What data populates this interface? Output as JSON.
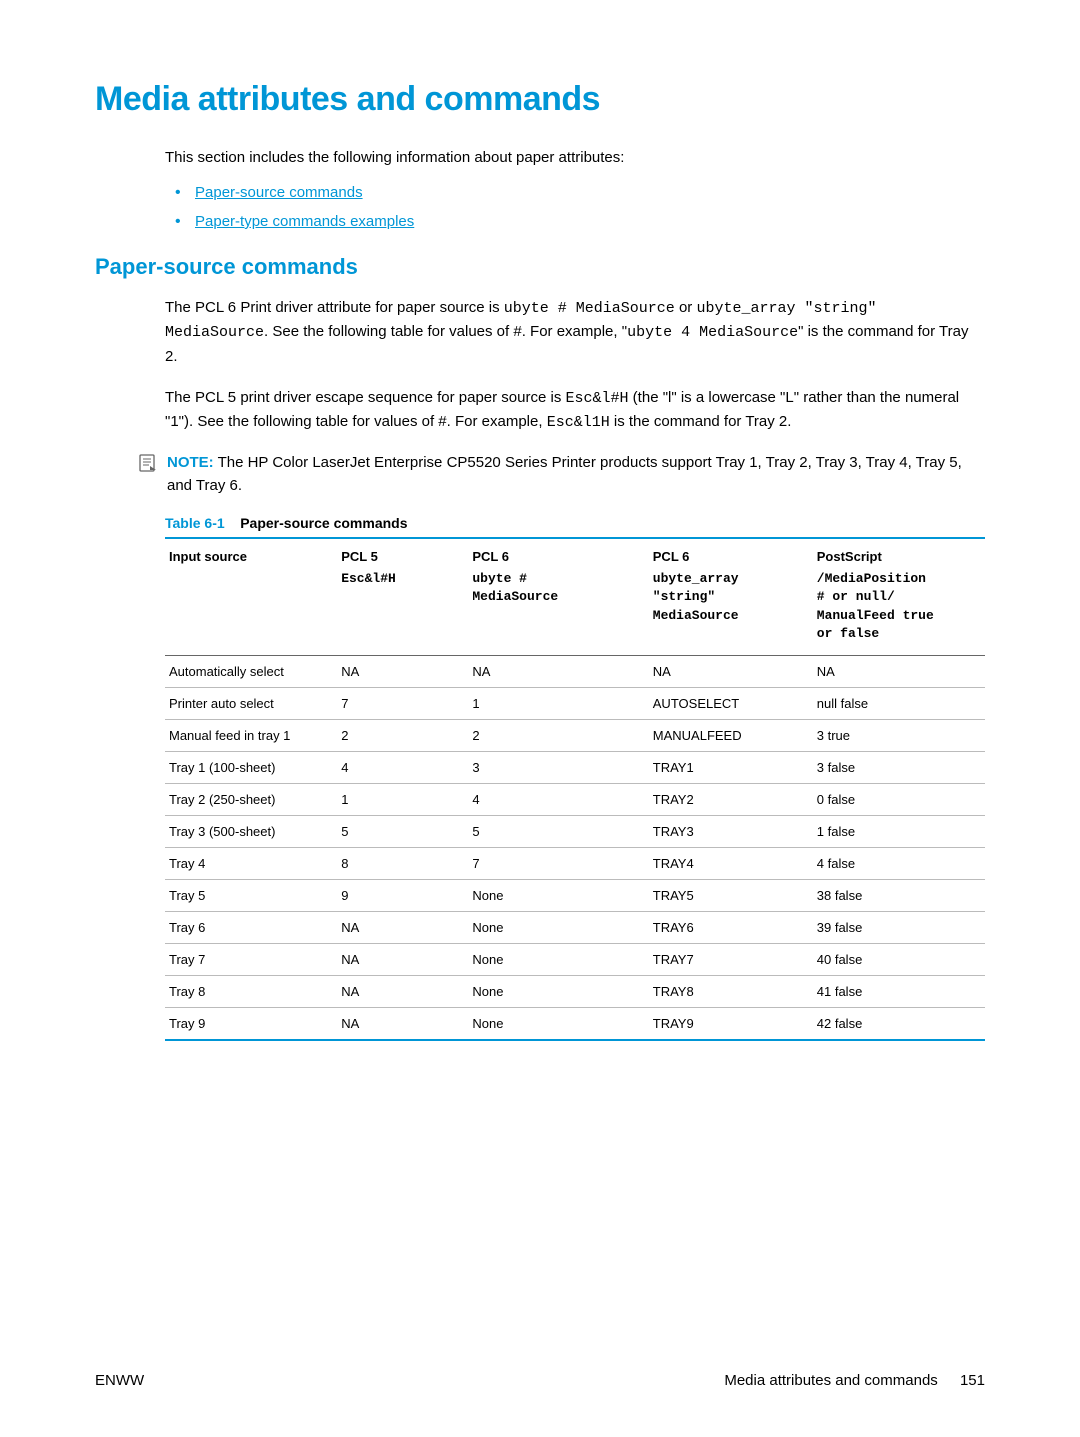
{
  "heading": "Media attributes and commands",
  "intro": "This section includes the following information about paper attributes:",
  "links": [
    "Paper-source commands",
    "Paper-type commands examples"
  ],
  "subheading": "Paper-source commands",
  "para1_a": "The PCL 6 Print driver attribute for paper source is ",
  "para1_code1": "ubyte # MediaSource",
  "para1_b": " or ",
  "para1_code2": "ubyte_array \"string\" MediaSource",
  "para1_c": ". See the following table for values of #. For example, \"",
  "para1_code3": "ubyte 4 MediaSource",
  "para1_d": "\" is the command for Tray 2.",
  "para2_a": "The PCL 5 print driver escape sequence for paper source is ",
  "para2_code1": "Esc&l#H",
  "para2_b": " (the \"l\" is a lowercase \"L\" rather than the numeral \"1\"). See the following table for values of #. For example, ",
  "para2_code2": "Esc&l1H",
  "para2_c": " is the command for Tray 2.",
  "note_label": "NOTE:",
  "note_text": "The HP Color LaserJet Enterprise CP5520 Series Printer products support Tray 1, Tray 2, Tray 3, Tray 4, Tray 5, and Tray 6.",
  "table_caption_num": "Table 6-1",
  "table_caption_title": "Paper-source commands",
  "columns": {
    "c1": "Input source",
    "c2": "PCL 5",
    "c3": "PCL 6",
    "c4": "PCL 6",
    "c5": "PostScript",
    "s1": "",
    "s2": "Esc&l#H",
    "s3": "ubyte #\nMediaSource",
    "s4": "ubyte_array\n\"string\"\nMediaSource",
    "s5": "/MediaPosition\n# or null/\nManualFeed true\nor false"
  },
  "rows": [
    [
      "Automatically select",
      "NA",
      "NA",
      "NA",
      "NA"
    ],
    [
      "Printer auto select",
      "7",
      "1",
      "AUTOSELECT",
      "null false"
    ],
    [
      "Manual feed in tray 1",
      "2",
      "2",
      "MANUALFEED",
      "3 true"
    ],
    [
      "Tray 1 (100-sheet)",
      "4",
      "3",
      "TRAY1",
      "3 false"
    ],
    [
      "Tray 2 (250-sheet)",
      "1",
      "4",
      "TRAY2",
      "0 false"
    ],
    [
      "Tray 3 (500-sheet)",
      "5",
      "5",
      "TRAY3",
      "1 false"
    ],
    [
      "Tray 4",
      "8",
      "7",
      "TRAY4",
      "4 false"
    ],
    [
      "Tray 5",
      "9",
      "None",
      "TRAY5",
      "38 false"
    ],
    [
      "Tray 6",
      "NA",
      "None",
      "TRAY6",
      "39 false"
    ],
    [
      "Tray 7",
      "NA",
      "None",
      "TRAY7",
      "40 false"
    ],
    [
      "Tray 8",
      "NA",
      "None",
      "TRAY8",
      "41 false"
    ],
    [
      "Tray 9",
      "NA",
      "None",
      "TRAY9",
      "42 false"
    ]
  ],
  "footer_left": "ENWW",
  "footer_right": "Media attributes and commands",
  "page_number": "151",
  "colors": {
    "accent": "#0096d6",
    "text": "#000000",
    "row_border": "#bbbbbb",
    "background": "#ffffff"
  }
}
